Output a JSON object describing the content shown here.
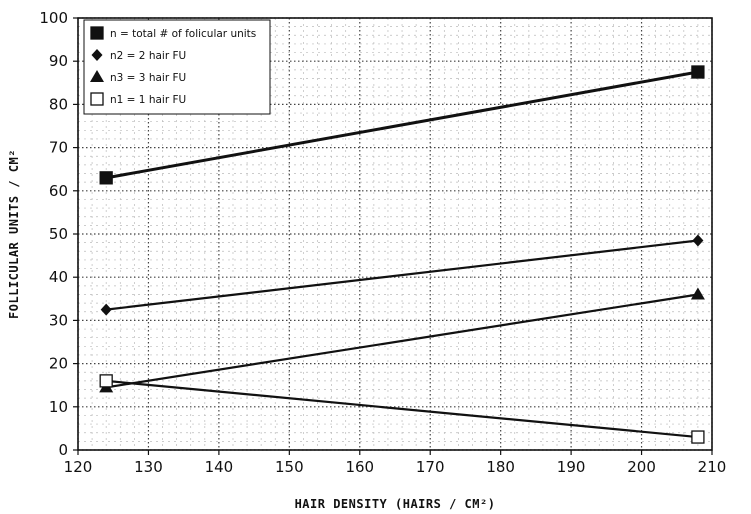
{
  "chart_data": {
    "type": "line",
    "title": "",
    "xlabel": "HAIR DENSITY (HAIRS / CM²)",
    "ylabel": "FOLLICULAR UNITS / CM²",
    "xlim": [
      120,
      210
    ],
    "ylim": [
      0,
      100
    ],
    "x_ticks": [
      120,
      130,
      140,
      150,
      160,
      170,
      180,
      190,
      200,
      210
    ],
    "y_ticks": [
      0,
      10,
      20,
      30,
      40,
      50,
      60,
      70,
      80,
      90,
      100
    ],
    "grid": true,
    "legend_position": "top-left",
    "series": [
      {
        "name": "n = total # of folicular units",
        "marker": "filled-square",
        "x": [
          124,
          208
        ],
        "y": [
          63,
          87.5
        ]
      },
      {
        "name": "n2 = 2 hair FU",
        "marker": "filled-diamond",
        "x": [
          124,
          208
        ],
        "y": [
          32.5,
          48.5
        ]
      },
      {
        "name": "n3 = 3 hair FU",
        "marker": "filled-triangle",
        "x": [
          124,
          208
        ],
        "y": [
          14.5,
          36
        ]
      },
      {
        "name": "n1 = 1 hair FU",
        "marker": "open-square",
        "x": [
          124,
          208
        ],
        "y": [
          16,
          3
        ]
      }
    ]
  }
}
